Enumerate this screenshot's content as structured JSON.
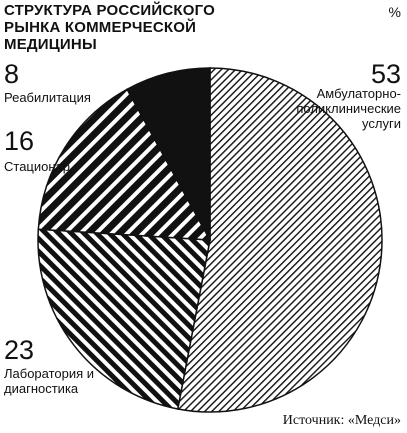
{
  "chart_data": {
    "type": "pie",
    "title": "СТРУКТУРА РОССИЙСКОГО РЫНКА КОММЕРЧЕСКОЙ МЕДИЦИНЫ",
    "unit": "%",
    "categories": [
      "Амбулаторно-поликлинические услуги",
      "Лаборатория и диагностика",
      "Стационар",
      "Реабилитация"
    ],
    "values": [
      53,
      23,
      16,
      8
    ],
    "source": "Источник: «Медси»"
  }
}
